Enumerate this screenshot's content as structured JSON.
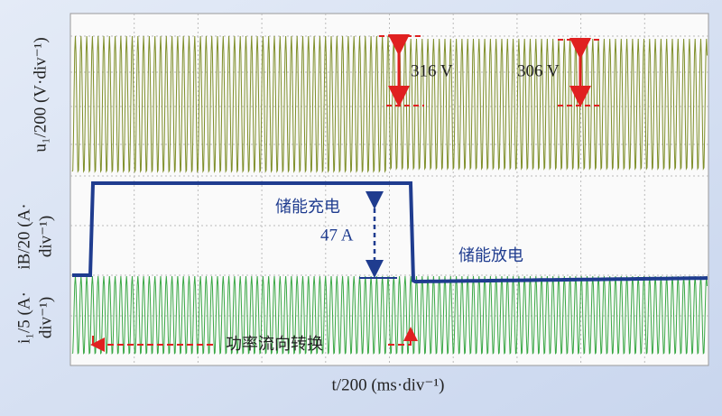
{
  "chart_data": {
    "type": "oscilloscope",
    "x_label": "t/200 (ms·div⁻¹)",
    "panels": [
      {
        "y_label": [
          "u₁/200 (V·div⁻¹)"
        ],
        "color": "#7f8f2a"
      },
      {
        "y_label": [
          "iB/20 (A·",
          "div⁻¹)"
        ],
        "color": "#1f3c8f"
      },
      {
        "y_label": [
          "i₁/5 (A·",
          "div⁻¹)"
        ],
        "color": "#3aa845"
      }
    ],
    "annotations": {
      "voltage_left": "316 V",
      "voltage_right": "306 V",
      "charging": "储能充电",
      "current_step": "47 A",
      "discharging": "储能放电",
      "power_flow": "功率流向转换"
    }
  }
}
